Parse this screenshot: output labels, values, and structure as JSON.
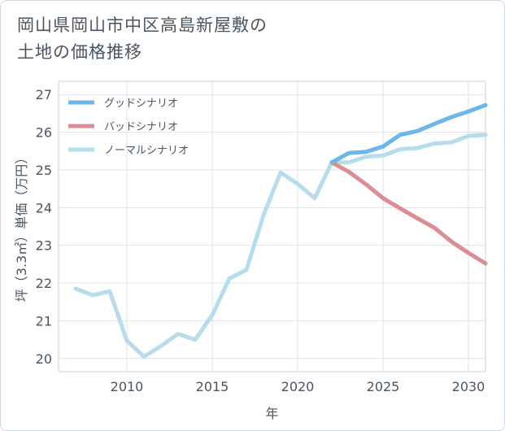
{
  "title_line1": "岡山県岡山市中区高島新屋敷の",
  "title_line2": "土地の価格推移",
  "chart_data": {
    "type": "line",
    "xlabel": "年",
    "ylabel": "坪（3.3㎡）単価（万円）",
    "xlim": [
      2006,
      2031
    ],
    "ylim": [
      19.65,
      27.35
    ],
    "x_ticks": [
      2010,
      2015,
      2020,
      2025,
      2030
    ],
    "y_ticks": [
      20,
      21,
      22,
      23,
      24,
      25,
      26,
      27
    ],
    "grid": true,
    "legend_position": "top-left",
    "series": [
      {
        "name": "グッドシナリオ",
        "color": "#6cb6ea",
        "x": [
          2022,
          2023,
          2024,
          2025,
          2026,
          2027,
          2028,
          2029,
          2030,
          2031
        ],
        "values": [
          25.2,
          25.45,
          25.48,
          25.62,
          25.93,
          26.03,
          26.22,
          26.4,
          26.55,
          26.72
        ]
      },
      {
        "name": "バッドシナリオ",
        "color": "#dc8c93",
        "x": [
          2022,
          2023,
          2024,
          2025,
          2026,
          2027,
          2028,
          2029,
          2030,
          2031
        ],
        "values": [
          25.2,
          24.95,
          24.62,
          24.25,
          23.98,
          23.72,
          23.47,
          23.1,
          22.8,
          22.52
        ]
      },
      {
        "name": "ノーマルシナリオ",
        "color": "#b7dcec",
        "x": [
          2007,
          2008,
          2009,
          2010,
          2011,
          2012,
          2013,
          2014,
          2015,
          2016,
          2017,
          2018,
          2019,
          2020,
          2021,
          2022,
          2023,
          2024,
          2025,
          2026,
          2027,
          2028,
          2029,
          2030,
          2031
        ],
        "values": [
          21.85,
          21.68,
          21.78,
          20.47,
          20.05,
          20.33,
          20.65,
          20.5,
          21.15,
          22.12,
          22.35,
          23.8,
          24.93,
          24.63,
          24.25,
          25.2,
          25.2,
          25.35,
          25.38,
          25.55,
          25.58,
          25.7,
          25.73,
          25.9,
          25.93
        ]
      }
    ]
  }
}
